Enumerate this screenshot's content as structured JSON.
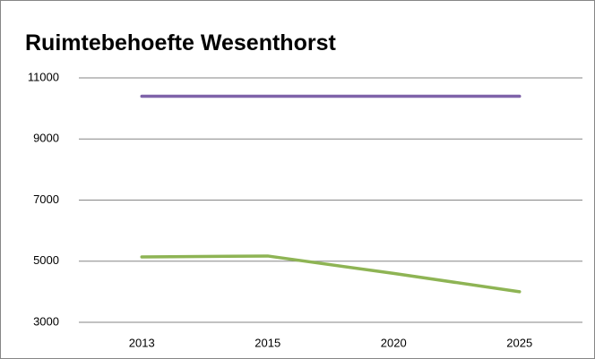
{
  "chart_data": {
    "type": "line",
    "title": "Ruimtebehoefte Wesenthorst",
    "categories": [
      "2013",
      "2015",
      "2020",
      "2025"
    ],
    "series": [
      {
        "color": "#7f63a9",
        "values": [
          10400,
          10400,
          10400,
          10400
        ]
      },
      {
        "color": "#8eb454",
        "values": [
          5140,
          5170,
          4600,
          4000
        ]
      }
    ],
    "ylim": [
      3000,
      11000
    ],
    "yticks": [
      3000,
      5000,
      7000,
      9000,
      11000
    ],
    "grid": true
  }
}
